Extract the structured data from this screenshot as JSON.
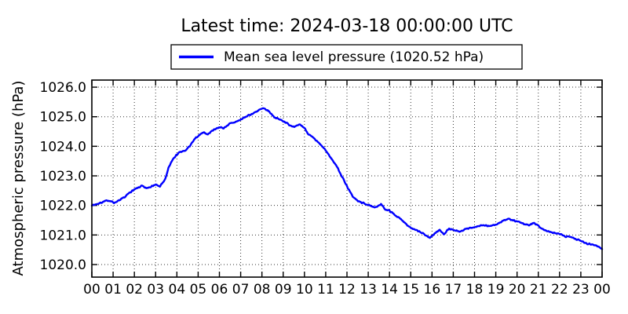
{
  "header": {
    "title": "Latest time: 2024-03-18 00:00:00 UTC"
  },
  "legend": {
    "label": "Mean sea level pressure (1020.52 hPa)",
    "line_color": "#0000ff",
    "position": "top-center"
  },
  "chart_data": {
    "type": "line",
    "title": "Latest time: 2024-03-18 00:00:00 UTC",
    "xlabel": "",
    "ylabel": "Atmospheric pressure (hPa)",
    "x_unit": "hour of day (UTC)",
    "grid": true,
    "grid_style": "dotted",
    "xlim": [
      0,
      24
    ],
    "ylim": [
      1019.575,
      1026.24
    ],
    "xticks": [
      0,
      1,
      2,
      3,
      4,
      5,
      6,
      7,
      8,
      9,
      10,
      11,
      12,
      13,
      14,
      15,
      16,
      17,
      18,
      19,
      20,
      21,
      22,
      23,
      24
    ],
    "xtick_labels": [
      "00",
      "01",
      "02",
      "03",
      "04",
      "05",
      "06",
      "07",
      "08",
      "09",
      "10",
      "11",
      "12",
      "13",
      "14",
      "15",
      "16",
      "17",
      "18",
      "19",
      "20",
      "21",
      "22",
      "23",
      "00"
    ],
    "yticks": [
      1020.0,
      1021.0,
      1022.0,
      1023.0,
      1024.0,
      1025.0,
      1026.0
    ],
    "ytick_labels": [
      "1020.0",
      "1021.0",
      "1022.0",
      "1023.0",
      "1024.0",
      "1025.0",
      "1026.0"
    ],
    "series": [
      {
        "name": "Mean sea level pressure",
        "latest_value_hPa": 1020.52,
        "color": "#0000ff",
        "points_hour_hPa": [
          [
            0.0,
            1022.0
          ],
          [
            0.3,
            1022.06
          ],
          [
            0.6,
            1022.14
          ],
          [
            0.8,
            1022.17
          ],
          [
            1.05,
            1022.09
          ],
          [
            1.3,
            1022.17
          ],
          [
            1.55,
            1022.28
          ],
          [
            1.8,
            1022.45
          ],
          [
            2.05,
            1022.55
          ],
          [
            2.35,
            1022.66
          ],
          [
            2.55,
            1022.58
          ],
          [
            2.8,
            1022.65
          ],
          [
            3.0,
            1022.7
          ],
          [
            3.2,
            1022.64
          ],
          [
            3.45,
            1022.88
          ],
          [
            3.6,
            1023.25
          ],
          [
            3.8,
            1023.55
          ],
          [
            4.0,
            1023.72
          ],
          [
            4.15,
            1023.8
          ],
          [
            4.4,
            1023.85
          ],
          [
            4.65,
            1024.05
          ],
          [
            4.85,
            1024.25
          ],
          [
            5.05,
            1024.38
          ],
          [
            5.25,
            1024.48
          ],
          [
            5.45,
            1024.4
          ],
          [
            5.7,
            1024.55
          ],
          [
            6.0,
            1024.65
          ],
          [
            6.2,
            1024.61
          ],
          [
            6.45,
            1024.75
          ],
          [
            6.75,
            1024.82
          ],
          [
            7.0,
            1024.9
          ],
          [
            7.3,
            1025.02
          ],
          [
            7.6,
            1025.12
          ],
          [
            7.85,
            1025.22
          ],
          [
            8.05,
            1025.28
          ],
          [
            8.3,
            1025.2
          ],
          [
            8.6,
            1024.98
          ],
          [
            8.85,
            1024.9
          ],
          [
            9.05,
            1024.84
          ],
          [
            9.3,
            1024.72
          ],
          [
            9.55,
            1024.66
          ],
          [
            9.8,
            1024.73
          ],
          [
            10.0,
            1024.62
          ],
          [
            10.2,
            1024.4
          ],
          [
            10.45,
            1024.26
          ],
          [
            10.6,
            1024.16
          ],
          [
            10.8,
            1024.02
          ],
          [
            11.0,
            1023.86
          ],
          [
            11.25,
            1023.6
          ],
          [
            11.5,
            1023.35
          ],
          [
            11.75,
            1023.0
          ],
          [
            12.0,
            1022.65
          ],
          [
            12.25,
            1022.32
          ],
          [
            12.5,
            1022.15
          ],
          [
            12.75,
            1022.08
          ],
          [
            13.0,
            1022.02
          ],
          [
            13.2,
            1021.94
          ],
          [
            13.45,
            1021.97
          ],
          [
            13.6,
            1022.04
          ],
          [
            13.8,
            1021.87
          ],
          [
            14.0,
            1021.82
          ],
          [
            14.4,
            1021.6
          ],
          [
            14.65,
            1021.47
          ],
          [
            14.9,
            1021.3
          ],
          [
            15.1,
            1021.2
          ],
          [
            15.35,
            1021.13
          ],
          [
            15.6,
            1021.04
          ],
          [
            15.9,
            1020.9
          ],
          [
            16.1,
            1021.04
          ],
          [
            16.35,
            1021.17
          ],
          [
            16.55,
            1021.03
          ],
          [
            16.8,
            1021.21
          ],
          [
            17.05,
            1021.15
          ],
          [
            17.3,
            1021.11
          ],
          [
            17.6,
            1021.2
          ],
          [
            18.0,
            1021.27
          ],
          [
            18.35,
            1021.33
          ],
          [
            18.6,
            1021.3
          ],
          [
            19.0,
            1021.34
          ],
          [
            19.35,
            1021.49
          ],
          [
            19.6,
            1021.54
          ],
          [
            19.85,
            1021.48
          ],
          [
            20.05,
            1021.45
          ],
          [
            20.3,
            1021.38
          ],
          [
            20.55,
            1021.33
          ],
          [
            20.8,
            1021.42
          ],
          [
            21.05,
            1021.28
          ],
          [
            21.3,
            1021.16
          ],
          [
            21.6,
            1021.09
          ],
          [
            22.0,
            1021.03
          ],
          [
            22.3,
            1020.94
          ],
          [
            22.5,
            1020.96
          ],
          [
            22.8,
            1020.85
          ],
          [
            23.05,
            1020.79
          ],
          [
            23.3,
            1020.71
          ],
          [
            23.55,
            1020.68
          ],
          [
            23.8,
            1020.62
          ],
          [
            24.0,
            1020.52
          ]
        ],
        "jitter_amplitude_hPa": 0.03
      }
    ],
    "colors": {
      "line": "#0000ff",
      "axis": "#000000",
      "background": "#ffffff"
    }
  }
}
